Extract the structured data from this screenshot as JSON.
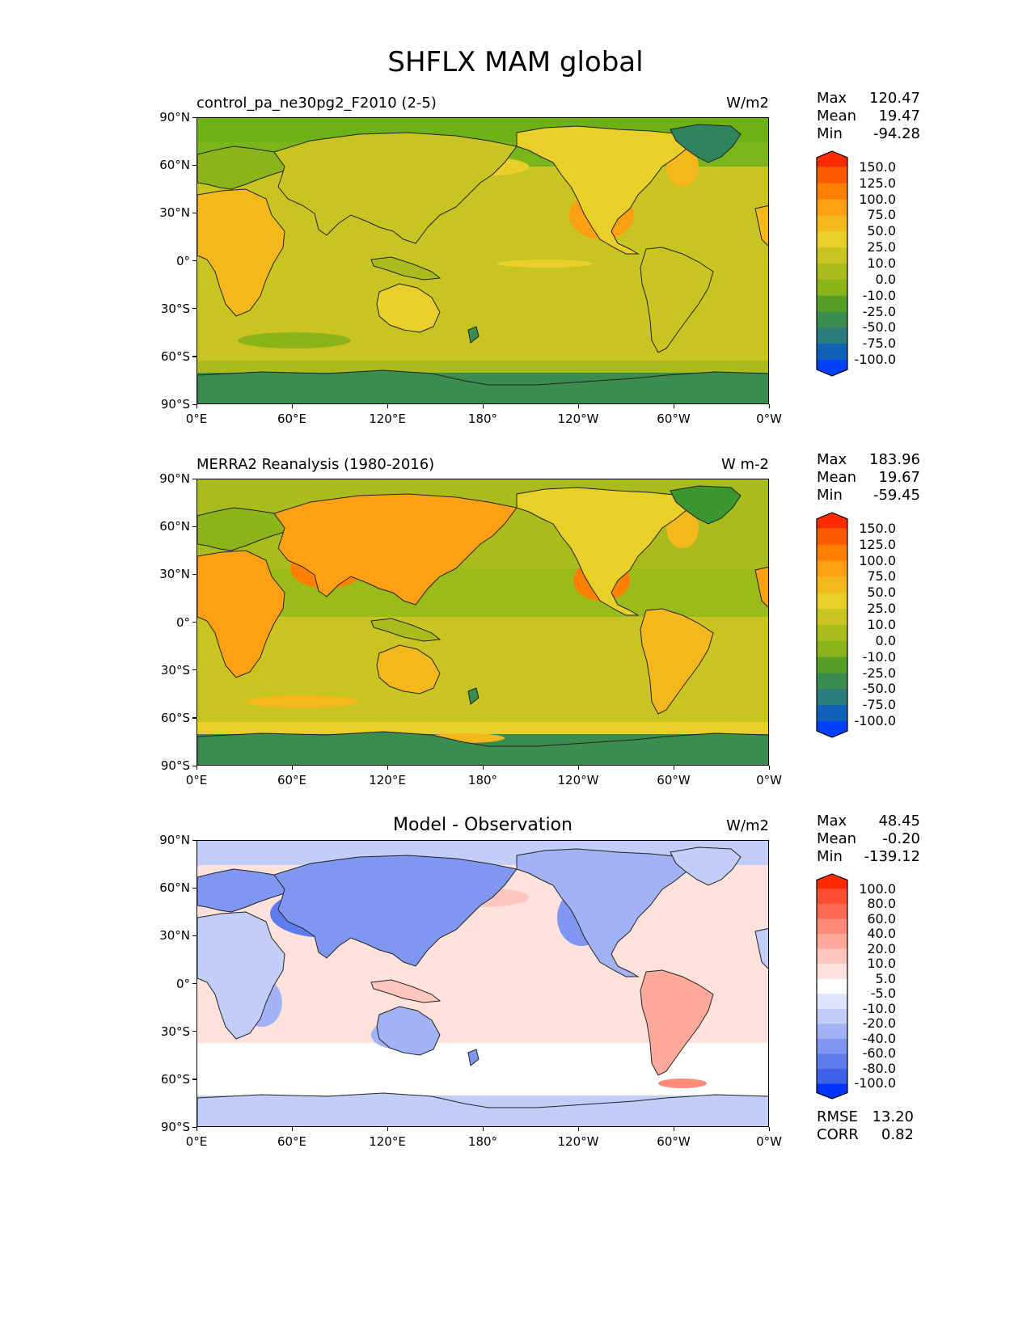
{
  "figure": {
    "title": "SHFLX MAM global"
  },
  "panels": [
    {
      "title": "control_pa_ne30pg2_F2010 (2-5)",
      "units": "W/m2",
      "stats": {
        "max_label": "Max",
        "max": "120.47",
        "mean_label": "Mean",
        "mean": "19.47",
        "min_label": "Min",
        "min": "-94.28"
      },
      "colorbar_labels": [
        "150.0",
        "125.0",
        "100.0",
        "75.0",
        "50.0",
        "25.0",
        "10.0",
        "0.0",
        "-10.0",
        "-25.0",
        "-50.0",
        "-75.0",
        "-100.0"
      ],
      "colorbar_colors": [
        "#ff2b00",
        "#ff5a00",
        "#ff8000",
        "#ff9f14",
        "#f5b81c",
        "#e8cf29",
        "#c8c421",
        "#a9bc1c",
        "#8bb31a",
        "#56a027",
        "#3a8d4e",
        "#2a7c7c",
        "#1062b8",
        "#0040ff"
      ]
    },
    {
      "title": "MERRA2 Reanalysis (1980-2016)",
      "units": "W m-2",
      "stats": {
        "max_label": "Max",
        "max": "183.96",
        "mean_label": "Mean",
        "mean": "19.67",
        "min_label": "Min",
        "min": "-59.45"
      },
      "colorbar_labels": [
        "150.0",
        "125.0",
        "100.0",
        "75.0",
        "50.0",
        "25.0",
        "10.0",
        "0.0",
        "-10.0",
        "-25.0",
        "-50.0",
        "-75.0",
        "-100.0"
      ],
      "colorbar_colors": [
        "#ff2b00",
        "#ff5a00",
        "#ff8000",
        "#ff9f14",
        "#f5b81c",
        "#e8cf29",
        "#c8c421",
        "#a9bc1c",
        "#8bb31a",
        "#56a027",
        "#3a8d4e",
        "#2a7c7c",
        "#1062b8",
        "#0040ff"
      ]
    },
    {
      "title": "Model - Observation",
      "units": "W/m2",
      "stats": {
        "max_label": "Max",
        "max": "48.45",
        "mean_label": "Mean",
        "mean": "-0.20",
        "min_label": "Min",
        "min": "-139.12"
      },
      "extra": {
        "rmse_label": "RMSE",
        "rmse": "13.20",
        "corr_label": "CORR",
        "corr": "0.82"
      },
      "colorbar_labels": [
        "100.0",
        "80.0",
        "60.0",
        "40.0",
        "20.0",
        "10.0",
        "5.0",
        "-5.0",
        "-10.0",
        "-20.0",
        "-40.0",
        "-60.0",
        "-80.0",
        "-100.0"
      ],
      "colorbar_colors": [
        "#ff2a00",
        "#ff4d33",
        "#ff6a55",
        "#ff8a78",
        "#ffa99a",
        "#ffc6bd",
        "#ffe2dc",
        "#ffffff",
        "#dfe4fb",
        "#c2cdf8",
        "#a2b3f5",
        "#7f97f0",
        "#5f7cec",
        "#3f62e8",
        "#0033ff"
      ]
    }
  ],
  "axes": {
    "lat_ticks": [
      "90°N",
      "60°N",
      "30°N",
      "0°",
      "30°S",
      "60°S",
      "90°S"
    ],
    "lon_ticks": [
      "0°E",
      "60°E",
      "120°E",
      "180°",
      "120°W",
      "60°W",
      "0°W"
    ]
  }
}
